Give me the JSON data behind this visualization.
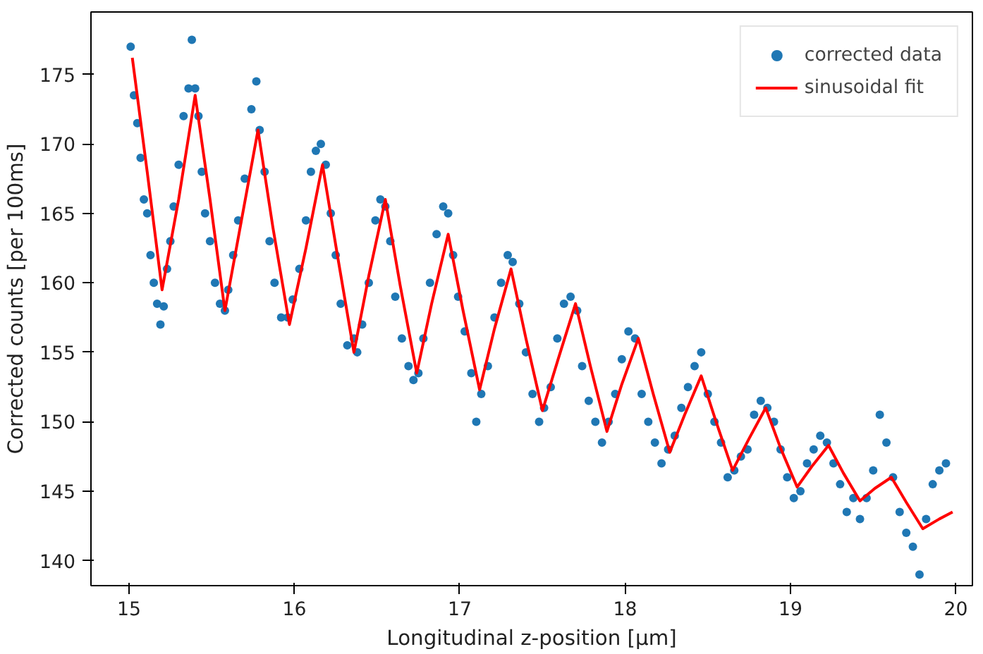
{
  "chart_data": {
    "type": "scatter",
    "xlabel": "Longitudinal z-position [µm]",
    "ylabel": "Corrected counts [per 100ms]",
    "xlim": [
      14.77,
      20.1
    ],
    "ylim": [
      138.2,
      179.5
    ],
    "xticks": [
      15,
      16,
      17,
      18,
      19,
      20
    ],
    "yticks": [
      140,
      145,
      150,
      155,
      160,
      165,
      170,
      175
    ],
    "grid": false,
    "legend": "top right",
    "series": [
      {
        "name": "corrected data",
        "color": "#1f77b4",
        "marker": "circle",
        "x": [
          15.01,
          15.03,
          15.05,
          15.07,
          15.09,
          15.11,
          15.13,
          15.15,
          15.17,
          15.19,
          15.21,
          15.23,
          15.25,
          15.27,
          15.3,
          15.33,
          15.36,
          15.38,
          15.4,
          15.42,
          15.44,
          15.46,
          15.49,
          15.52,
          15.55,
          15.58,
          15.6,
          15.63,
          15.66,
          15.7,
          15.74,
          15.77,
          15.79,
          15.82,
          15.85,
          15.88,
          15.92,
          15.96,
          15.99,
          16.03,
          16.07,
          16.1,
          16.13,
          16.16,
          16.19,
          16.22,
          16.25,
          16.28,
          16.32,
          16.36,
          16.38,
          16.41,
          16.45,
          16.49,
          16.52,
          16.55,
          16.58,
          16.61,
          16.65,
          16.69,
          16.72,
          16.75,
          16.78,
          16.82,
          16.86,
          16.9,
          16.93,
          16.96,
          16.99,
          17.03,
          17.07,
          17.1,
          17.13,
          17.17,
          17.21,
          17.25,
          17.29,
          17.32,
          17.36,
          17.4,
          17.44,
          17.48,
          17.51,
          17.55,
          17.59,
          17.63,
          17.67,
          17.71,
          17.74,
          17.78,
          17.82,
          17.86,
          17.9,
          17.94,
          17.98,
          18.02,
          18.06,
          18.1,
          18.14,
          18.18,
          18.22,
          18.26,
          18.3,
          18.34,
          18.38,
          18.42,
          18.46,
          18.5,
          18.54,
          18.58,
          18.62,
          18.66,
          18.7,
          18.74,
          18.78,
          18.82,
          18.86,
          18.9,
          18.94,
          18.98,
          19.02,
          19.06,
          19.1,
          19.14,
          19.18,
          19.22,
          19.26,
          19.3,
          19.34,
          19.38,
          19.42,
          19.46,
          19.5,
          19.54,
          19.58,
          19.62,
          19.66,
          19.7,
          19.74,
          19.78,
          19.82,
          19.86,
          19.9,
          19.94
        ],
        "values": [
          177,
          173.5,
          171.5,
          169,
          166,
          165,
          162,
          160,
          158.5,
          157,
          158.3,
          161,
          163,
          165.5,
          168.5,
          172,
          174,
          177.5,
          174,
          172,
          168,
          165,
          163,
          160,
          158.5,
          158,
          159.5,
          162,
          164.5,
          167.5,
          172.5,
          174.5,
          171,
          168,
          163,
          160,
          157.5,
          157.5,
          158.8,
          161,
          164.5,
          168,
          169.5,
          170,
          168.5,
          165,
          162,
          158.5,
          155.5,
          156,
          155,
          157,
          160,
          164.5,
          166,
          165.5,
          163,
          159,
          156,
          154,
          153,
          153.5,
          156,
          160,
          163.5,
          165.5,
          165,
          162,
          159,
          156.5,
          153.5,
          150,
          152,
          154,
          157.5,
          160,
          162,
          161.5,
          158.5,
          155,
          152,
          150,
          151,
          152.5,
          156,
          158.5,
          159,
          158,
          154,
          151.5,
          150,
          148.5,
          150,
          152,
          154.5,
          156.5,
          156,
          152,
          150,
          148.5,
          147,
          148,
          149,
          151,
          152.5,
          154,
          155,
          152,
          150,
          148.5,
          146,
          146.5,
          147.5,
          148,
          150.5,
          151.5,
          151,
          150,
          148,
          146,
          144.5,
          145,
          147,
          148,
          149,
          148.5,
          147,
          145.5,
          143.5,
          144.5,
          143,
          144.5,
          146.5,
          150.5,
          148.5,
          146,
          143.5,
          142,
          141,
          139,
          143,
          145.5,
          146.5,
          147
        ]
      },
      {
        "name": "sinusoidal fit",
        "type": "line",
        "color": "#ff0000",
        "line_style": "solid",
        "marker": "none",
        "x": [
          15.02,
          15.11,
          15.2,
          15.3,
          15.4,
          15.49,
          15.58,
          15.68,
          15.78,
          15.87,
          15.97,
          16.07,
          16.17,
          16.26,
          16.36,
          16.45,
          16.55,
          16.64,
          16.74,
          16.83,
          16.93,
          17.02,
          17.12,
          17.21,
          17.31,
          17.4,
          17.5,
          17.6,
          17.7,
          17.79,
          17.89,
          17.98,
          18.08,
          18.17,
          18.27,
          18.36,
          18.46,
          18.55,
          18.65,
          18.75,
          18.85,
          18.94,
          19.04,
          19.13,
          19.23,
          19.32,
          19.42,
          19.51,
          19.61,
          19.7,
          19.8,
          19.9,
          19.98
        ],
        "values": [
          176.2,
          168,
          159.5,
          166,
          173.5,
          166,
          158,
          164.5,
          171,
          164,
          157,
          162.5,
          168.5,
          162,
          155,
          160.5,
          166,
          159.8,
          153.5,
          158.5,
          163.5,
          158,
          152.3,
          156.7,
          161,
          156,
          150.8,
          154.7,
          158.5,
          154,
          149.3,
          152.7,
          156,
          152,
          147.8,
          150.5,
          153.3,
          150,
          146.5,
          148.8,
          151,
          148.1,
          145.3,
          146.8,
          148.3,
          146.3,
          144.3,
          145.2,
          146,
          144.2,
          142.3,
          143,
          143.5
        ]
      }
    ]
  }
}
